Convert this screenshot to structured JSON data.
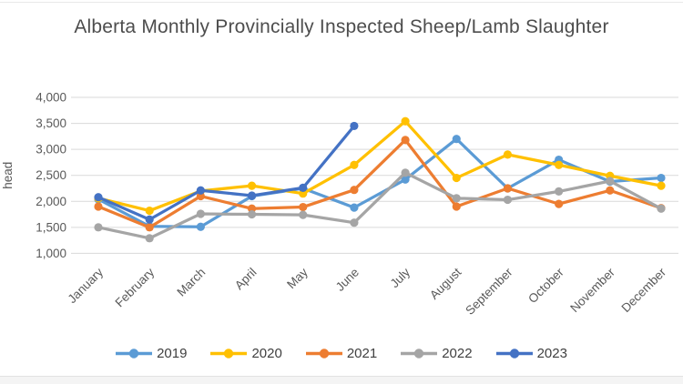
{
  "chart_data": {
    "type": "line",
    "title": "Alberta Monthly Provincially Inspected Sheep/Lamb Slaughter",
    "xlabel": "",
    "ylabel": "head",
    "ylim": [
      1000,
      4000
    ],
    "grid": true,
    "legend_position": "bottom",
    "yticks": [
      {
        "label": "4,000",
        "value": 4000
      },
      {
        "label": "3,500",
        "value": 3500
      },
      {
        "label": "3,000",
        "value": 3000
      },
      {
        "label": "2,500",
        "value": 2500
      },
      {
        "label": "2,000",
        "value": 2000
      },
      {
        "label": "1,500",
        "value": 1500
      },
      {
        "label": "1,000",
        "value": 1000
      }
    ],
    "categories": [
      "January",
      "February",
      "March",
      "April",
      "May",
      "June",
      "July",
      "August",
      "September",
      "October",
      "November",
      "December"
    ],
    "series": [
      {
        "name": "2019",
        "color": "#5B9BD5",
        "values": [
          2040,
          1520,
          1510,
          2100,
          2250,
          1880,
          2420,
          3200,
          2250,
          2800,
          2380,
          2450
        ]
      },
      {
        "name": "2020",
        "color": "#FFC000",
        "values": [
          2060,
          1820,
          2200,
          2300,
          2150,
          2700,
          3540,
          2450,
          2900,
          2700,
          2490,
          2300
        ]
      },
      {
        "name": "2021",
        "color": "#ED7D31",
        "values": [
          1900,
          1500,
          2100,
          1860,
          1890,
          2220,
          3180,
          1900,
          2250,
          1950,
          2210,
          1870
        ]
      },
      {
        "name": "2022",
        "color": "#A5A5A5",
        "values": [
          1500,
          1290,
          1760,
          1750,
          1740,
          1590,
          2550,
          2060,
          2030,
          2190,
          2390,
          1860
        ]
      },
      {
        "name": "2023",
        "color": "#4472C4",
        "values": [
          2080,
          1650,
          2210,
          2110,
          2260,
          3450,
          null,
          null,
          null,
          null,
          null,
          null
        ]
      }
    ],
    "colors": {
      "gridline": "#D9D9D9",
      "axis_text": "#595959",
      "title_text": "#4d4d4d"
    }
  }
}
